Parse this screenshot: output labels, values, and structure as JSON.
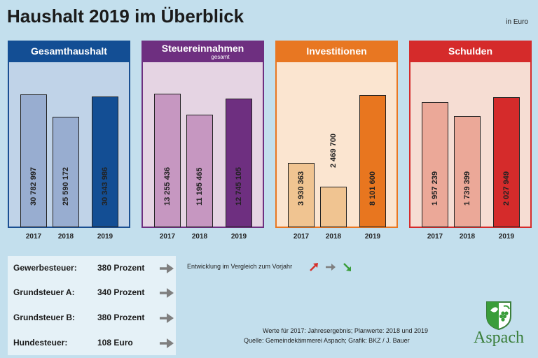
{
  "title": "Haushalt 2019 im Überblick",
  "unit": "in Euro",
  "chart_data": [
    {
      "type": "bar",
      "title": "Gesamthaushalt",
      "subtitle": "",
      "categories": [
        "2017",
        "2018",
        "2019"
      ],
      "values": [
        30782997,
        25590172,
        30343986
      ],
      "value_labels": [
        "30 782 997",
        "25 590 172",
        "30 343 986"
      ]
    },
    {
      "type": "bar",
      "title": "Steuereinnahmen",
      "subtitle": "gesamt",
      "categories": [
        "2017",
        "2018",
        "2019"
      ],
      "values": [
        13255436,
        11195465,
        12745105
      ],
      "value_labels": [
        "13 255 436",
        "11 195 465",
        "12 745 105"
      ]
    },
    {
      "type": "bar",
      "title": "Investitionen",
      "subtitle": "",
      "categories": [
        "2017",
        "2018",
        "2019"
      ],
      "values": [
        3930363,
        2469700,
        8101600
      ],
      "value_labels": [
        "3 930 363",
        "2 469 700",
        "8 101 600"
      ]
    },
    {
      "type": "bar",
      "title": "Schulden",
      "subtitle": "",
      "categories": [
        "2017",
        "2018",
        "2019"
      ],
      "values": [
        1957239,
        1739399,
        2027949
      ],
      "value_labels": [
        "1 957 239",
        "1 739 399",
        "2 027 949"
      ]
    }
  ],
  "colors": {
    "panels": [
      {
        "head": "#134e94",
        "body": "#c0d3e8",
        "border": "#1b4f92",
        "bars": [
          "#98add0",
          "#98add0",
          "#134e94"
        ]
      },
      {
        "head": "#6e2f80",
        "body": "#e5d4e3",
        "border": "#6e2f80",
        "bars": [
          "#c697c1",
          "#c697c1",
          "#6e2f80"
        ]
      },
      {
        "head": "#e87722",
        "body": "#fbe5d0",
        "border": "#e87722",
        "bars": [
          "#f0c491",
          "#f0c491",
          "#e8761f"
        ]
      },
      {
        "head": "#d52b2b",
        "body": "#f6ddd3",
        "border": "#d52b2b",
        "bars": [
          "#eba898",
          "#eba898",
          "#d52b2b"
        ]
      }
    ],
    "arrow_up": "#d5302b",
    "arrow_flat": "#7f7f7f",
    "arrow_down": "#3a9d3a"
  },
  "taxes": [
    {
      "name": "Gewerbesteuer:",
      "value": "380 Prozent",
      "trend": "flat"
    },
    {
      "name": "Grundsteuer A:",
      "value": "340 Prozent",
      "trend": "flat"
    },
    {
      "name": "Grundsteuer B:",
      "value": "380 Prozent",
      "trend": "flat"
    },
    {
      "name": "Hundesteuer:",
      "value": "108 Euro",
      "trend": "flat"
    }
  ],
  "legend": {
    "text": "Entwicklung im Vergleich zum Vorjahr",
    "icons": [
      "arrow-up-icon",
      "arrow-right-icon",
      "arrow-down-icon"
    ]
  },
  "footnotes": {
    "line1": "Werte für 2017: Jahresergebnis; Planwerte: 2018 und 2019",
    "line2": "Quelle:  Gemeindekämmerei Aspach; Grafik: BKZ / J. Bauer"
  },
  "logo": {
    "text": "Aspach",
    "icon": "aspach-coat-of-arms-icon"
  }
}
